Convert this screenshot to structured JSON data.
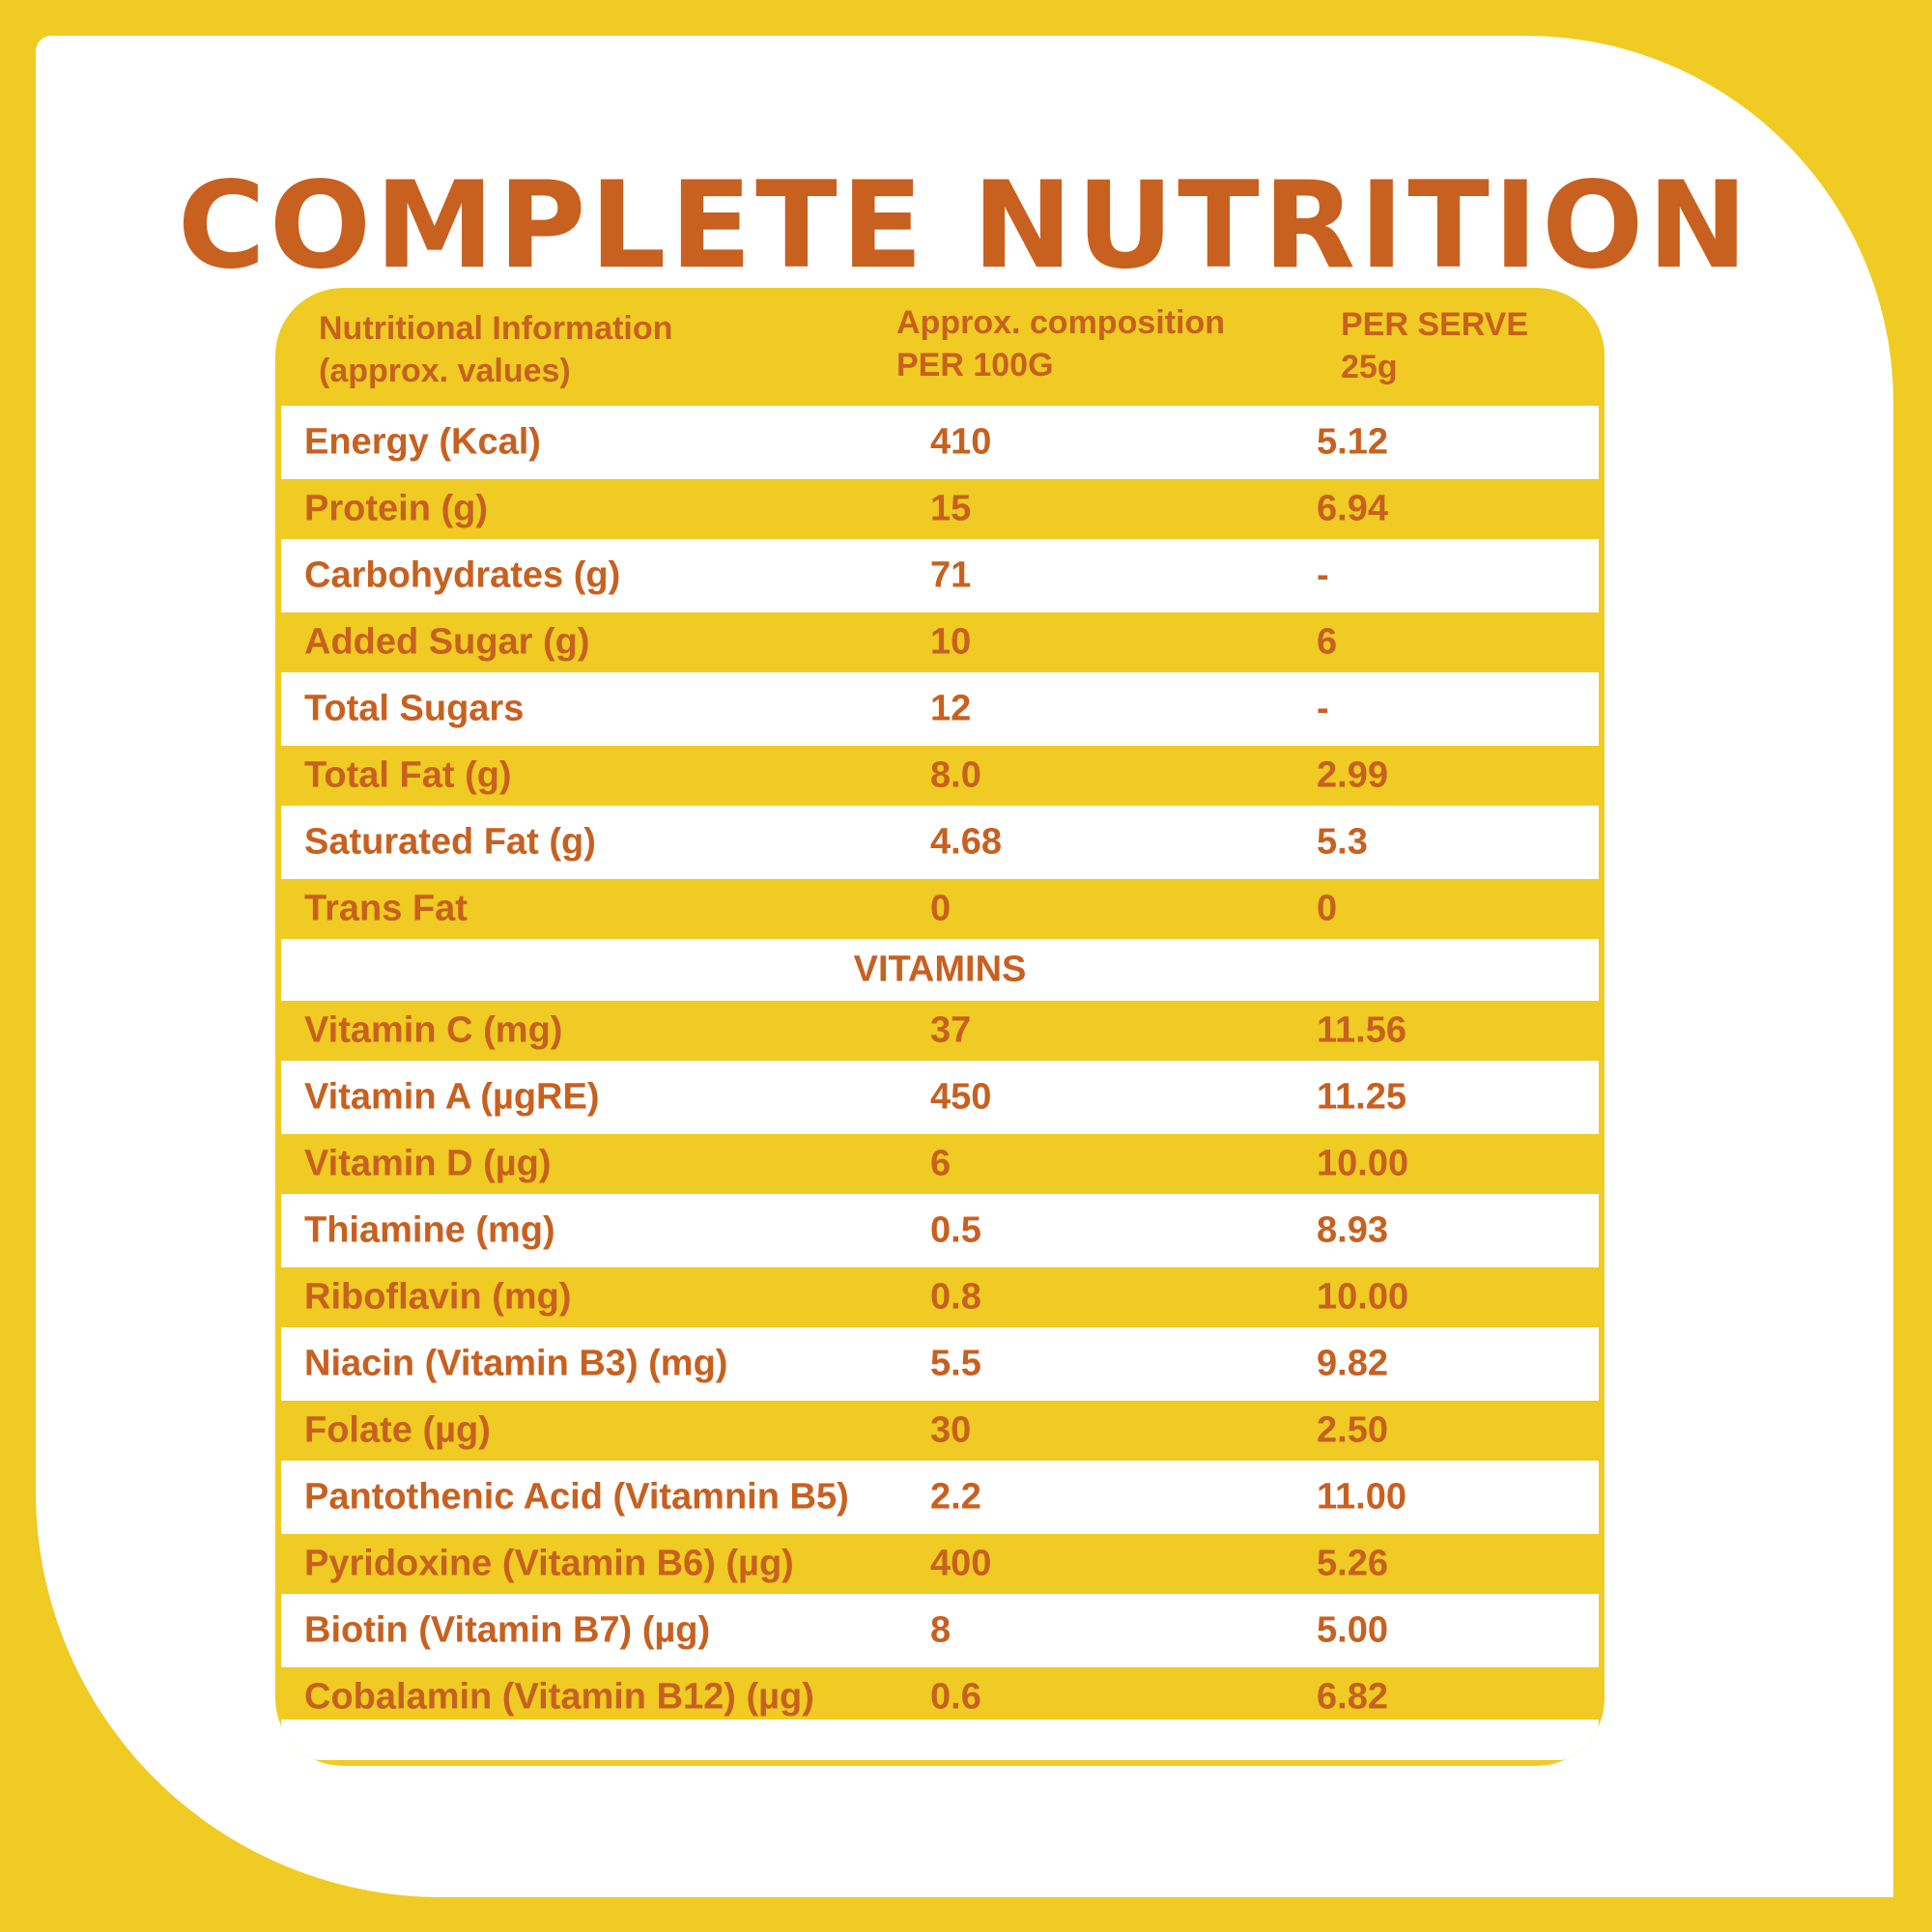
{
  "title": "COMPLETE NUTRITION",
  "colors": {
    "background": "#EFCB23",
    "text": "#C8601F",
    "card": "#FFFFFF"
  },
  "header": {
    "col1": [
      "Nutritional Information",
      "(approx. values)"
    ],
    "col2": [
      "Approx. composition",
      "PER 100G"
    ],
    "col3": [
      "PER SERVE",
      "25g"
    ]
  },
  "nutrients": [
    {
      "name": "Energy (Kcal)",
      "per100": "410",
      "perServe": "5.12"
    },
    {
      "name": "Protein (g)",
      "per100": "15",
      "perServe": "6.94"
    },
    {
      "name": "Carbohydrates (g)",
      "per100": "71",
      "perServe": "-"
    },
    {
      "name": "Added Sugar (g)",
      "per100": "10",
      "perServe": "6"
    },
    {
      "name": "Total Sugars",
      "per100": "12",
      "perServe": "-"
    },
    {
      "name": "Total Fat (g)",
      "per100": "8.0",
      "perServe": "2.99"
    },
    {
      "name": "Saturated Fat (g)",
      "per100": "4.68",
      "perServe": "5.3"
    },
    {
      "name": "Trans Fat",
      "per100": "0",
      "perServe": "0"
    }
  ],
  "section_label": "VITAMINS",
  "vitamins": [
    {
      "name": "Vitamin C (mg)",
      "per100": "37",
      "perServe": "11.56"
    },
    {
      "name": "Vitamin A (µgRE)",
      "per100": "450",
      "perServe": "11.25"
    },
    {
      "name": "Vitamin D (µg)",
      "per100": "6",
      "perServe": "10.00"
    },
    {
      "name": "Thiamine (mg)",
      "per100": "0.5",
      "perServe": "8.93"
    },
    {
      "name": "Riboflavin (mg)",
      "per100": "0.8",
      "perServe": "10.00"
    },
    {
      "name": "Niacin (Vitamin B3) (mg)",
      "per100": "5.5",
      "perServe": "9.82"
    },
    {
      "name": "Folate (µg)",
      "per100": "30",
      "perServe": "2.50"
    },
    {
      "name": "Pantothenic Acid (Vitamnin B5)",
      "per100": "2.2",
      "perServe": "11.00"
    },
    {
      "name": "Pyridoxine (Vitamin B6) (µg)",
      "per100": "400",
      "perServe": "5.26"
    },
    {
      "name": "Biotin (Vitamin B7) (µg)",
      "per100": "8",
      "perServe": "5.00"
    },
    {
      "name": "Cobalamin (Vitamin B12) (µg)",
      "per100": "0.6",
      "perServe": "6.82"
    }
  ]
}
